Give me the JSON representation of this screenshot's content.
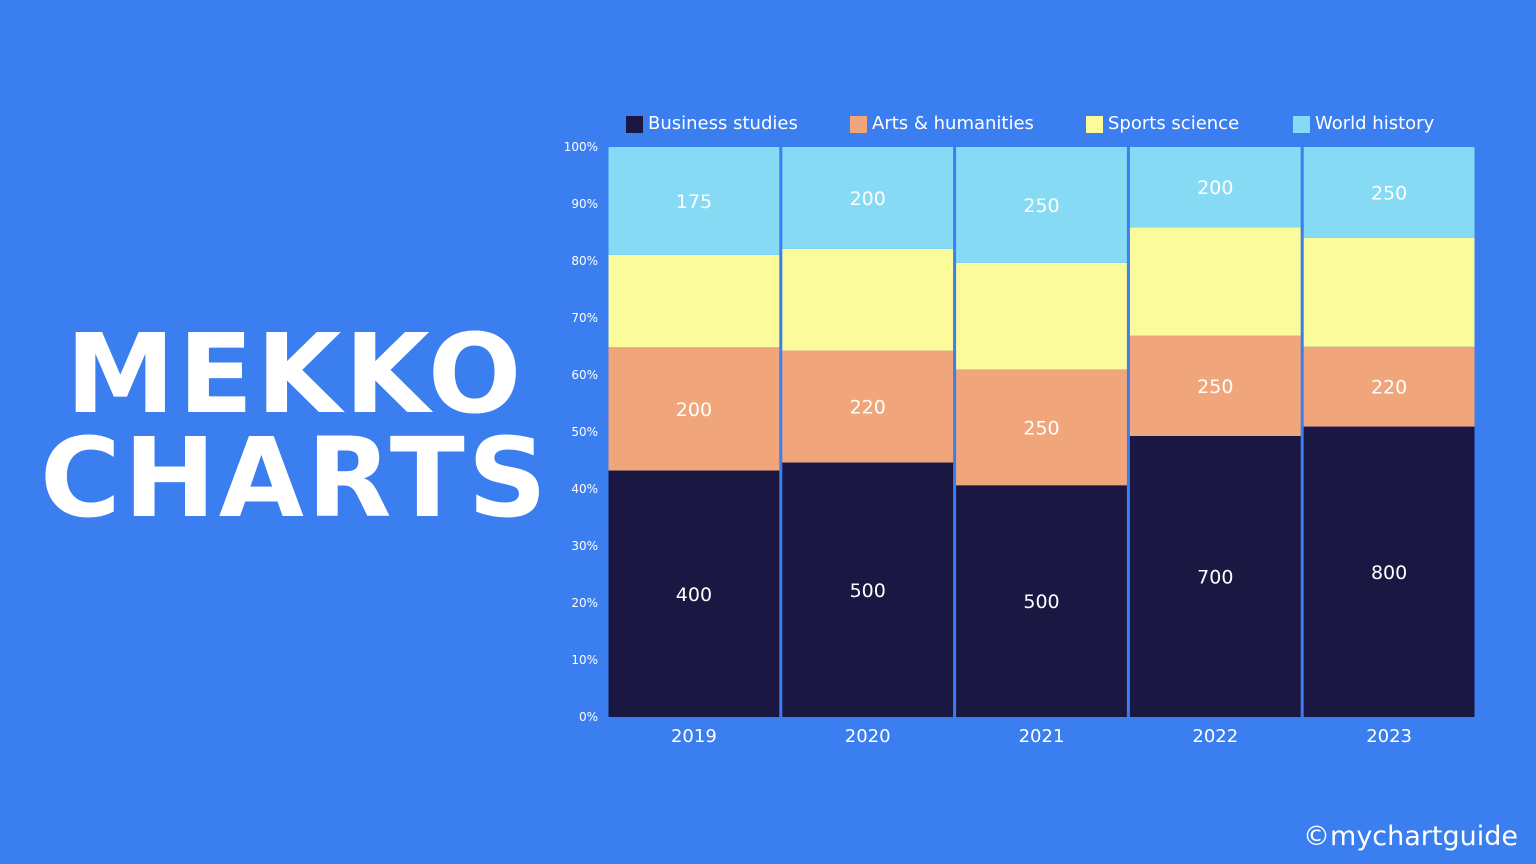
{
  "headline": {
    "line1": "MEKKO",
    "line2": "CHARTS"
  },
  "watermark": "©mychartguide",
  "colors": {
    "background": "#3a7ef0",
    "Business studies": "#1b1743",
    "Arts & humanities": "#f0a67a",
    "Sports science": "#fbfb9b",
    "World history": "#86daf4"
  },
  "chart_data": {
    "type": "bar",
    "stacked": true,
    "normalized": true,
    "categories": [
      "2019",
      "2020",
      "2021",
      "2022",
      "2023"
    ],
    "series": [
      {
        "name": "Business studies",
        "values": [
          400,
          500,
          500,
          700,
          800
        ],
        "labels": [
          "400",
          "500",
          "500",
          "700",
          "800"
        ]
      },
      {
        "name": "Arts & humanities",
        "values": [
          200,
          220,
          250,
          250,
          220
        ],
        "labels": [
          "200",
          "220",
          "250",
          "250",
          "220"
        ]
      },
      {
        "name": "Sports science",
        "values": [
          150,
          200,
          230,
          270,
          300
        ],
        "labels": [
          "",
          "",
          "",
          "",
          ""
        ]
      },
      {
        "name": "World history",
        "values": [
          175,
          200,
          250,
          200,
          250
        ],
        "labels": [
          "175",
          "200",
          "250",
          "200",
          "250"
        ]
      }
    ],
    "yticks": [
      "0%",
      "10%",
      "20%",
      "30%",
      "40%",
      "50%",
      "60%",
      "70%",
      "80%",
      "90%",
      "100%"
    ],
    "ylim": [
      0,
      100
    ],
    "legend": "top",
    "grid": false
  }
}
